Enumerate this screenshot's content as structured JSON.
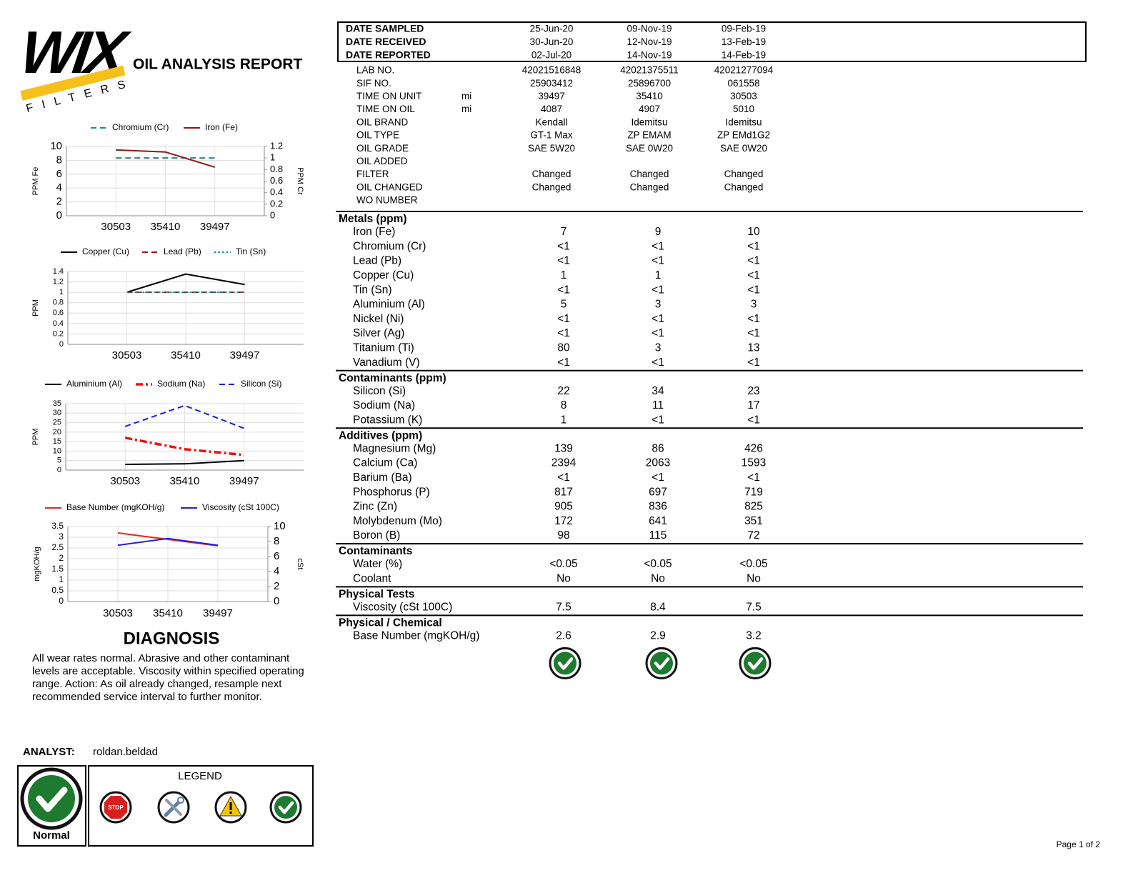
{
  "header": {
    "brand": "WIX",
    "brand_sub": "FILTERS",
    "title": "OIL ANALYSIS REPORT"
  },
  "chart_data": [
    {
      "type": "line",
      "categories": [
        "30503",
        "35410",
        "39497"
      ],
      "ylabel": "PPM Fe",
      "y2label": "PPM Cr",
      "ylim": [
        0,
        10
      ],
      "yticks": [
        0,
        2,
        4,
        6,
        8,
        10
      ],
      "y2lim": [
        0,
        1.2
      ],
      "y2ticks": [
        0,
        0.2,
        0.4,
        0.6,
        0.8,
        1,
        1.2
      ],
      "grid": true,
      "series": [
        {
          "name": "Chromium (Cr)",
          "color": "#1a8a8a",
          "dash": "dashed",
          "axis": "y2",
          "values": [
            1,
            1,
            1
          ]
        },
        {
          "name": "Iron (Fe)",
          "color": "#8b1a1a",
          "values": [
            9.5,
            9.2,
            7
          ]
        }
      ]
    },
    {
      "type": "line",
      "categories": [
        "30503",
        "35410",
        "39497"
      ],
      "ylabel": "PPM",
      "ylim": [
        0,
        1.4
      ],
      "yticks": [
        0,
        0.2,
        0.4,
        0.6,
        0.8,
        1,
        1.2,
        1.4
      ],
      "grid": true,
      "series": [
        {
          "name": "Copper (Cu)",
          "color": "#000000",
          "values": [
            1,
            1.35,
            1.15
          ]
        },
        {
          "name": "Lead (Pb)",
          "color": "#8b1a1a",
          "dash": "dashed",
          "values": [
            1,
            1,
            1
          ]
        },
        {
          "name": "Tin (Sn)",
          "color": "#1a8a8a",
          "dash": "dotted",
          "values": [
            1,
            1,
            1
          ]
        }
      ]
    },
    {
      "type": "line",
      "categories": [
        "30503",
        "35410",
        "39497"
      ],
      "ylabel": "PPM",
      "ylim": [
        0,
        35
      ],
      "yticks": [
        0,
        5,
        10,
        15,
        20,
        25,
        30,
        35
      ],
      "grid": true,
      "series": [
        {
          "name": "Aluminium (Al)",
          "color": "#000000",
          "values": [
            3,
            3.3,
            5
          ]
        },
        {
          "name": "Sodium (Na)",
          "color": "#ee1111",
          "dash": "dashdot",
          "values": [
            17,
            11,
            8
          ]
        },
        {
          "name": "Silicon (Si)",
          "color": "#1c1cdd",
          "dash": "dashed",
          "values": [
            23,
            34,
            22
          ]
        }
      ]
    },
    {
      "type": "line",
      "categories": [
        "30503",
        "35410",
        "39497"
      ],
      "ylabel": "mgKOH/g",
      "y2label": "cSt",
      "ylim": [
        0,
        3.5
      ],
      "yticks": [
        0,
        0.5,
        1,
        1.5,
        2,
        2.5,
        3,
        3.5
      ],
      "y2lim": [
        0,
        10
      ],
      "y2ticks": [
        0,
        2,
        4,
        6,
        8,
        10
      ],
      "grid": true,
      "series": [
        {
          "name": "Base Number (mgKOH/g)",
          "color": "#ee2222",
          "values": [
            3.2,
            2.9,
            2.6
          ]
        },
        {
          "name": "Viscosity (cSt 100C)",
          "color": "#2222dd",
          "axis": "y2",
          "values": [
            7.5,
            8.4,
            7.5
          ]
        }
      ]
    }
  ],
  "diagnosis": {
    "title": "DIAGNOSIS",
    "text": "All wear rates normal. Abrasive and other contaminant levels are acceptable. Viscosity within specified operating range.  Action: As oil already changed, resample next recommended service interval to further monitor."
  },
  "analyst": {
    "label": "ANALYST:",
    "name": "roldan.beldad"
  },
  "status": {
    "label": "Normal"
  },
  "legend": {
    "title": "LEGEND",
    "stop_sign": "STOP",
    "items": [
      "Severe",
      "Abnormal",
      "Caution",
      "Normal"
    ]
  },
  "samples": {
    "rows": [
      {
        "label": "DATE SAMPLED",
        "values": [
          "25-Jun-20",
          "09-Nov-19",
          "09-Feb-19"
        ]
      },
      {
        "label": "DATE RECEIVED",
        "values": [
          "30-Jun-20",
          "12-Nov-19",
          "13-Feb-19"
        ]
      },
      {
        "label": "DATE REPORTED",
        "values": [
          "02-Jul-20",
          "14-Nov-19",
          "14-Feb-19"
        ]
      }
    ]
  },
  "info": {
    "rows": [
      {
        "label": "LAB NO.",
        "values": [
          "42021516848",
          "42021375511",
          "42021277094"
        ]
      },
      {
        "label": "SIF NO.",
        "values": [
          "25903412",
          "25896700",
          "061558"
        ]
      },
      {
        "label": "TIME ON UNIT",
        "unit": "mi",
        "values": [
          39497,
          35410,
          30503
        ]
      },
      {
        "label": "TIME ON OIL",
        "unit": "mi",
        "values": [
          4087,
          4907,
          5010
        ]
      },
      {
        "label": "OIL BRAND",
        "values": [
          "Kendall",
          "Idemitsu",
          "Idemitsu"
        ]
      },
      {
        "label": "OIL TYPE",
        "values": [
          "GT-1 Max",
          "ZP EMAM",
          "ZP EMd1G2"
        ]
      },
      {
        "label": "OIL GRADE",
        "values": [
          "SAE 5W20",
          "SAE 0W20",
          "SAE 0W20"
        ]
      },
      {
        "label": "OIL ADDED"
      },
      {
        "label": "FILTER",
        "values": [
          "Changed",
          "Changed",
          "Changed"
        ]
      },
      {
        "label": "OIL CHANGED",
        "values": [
          "Changed",
          "Changed",
          "Changed"
        ]
      },
      {
        "label": "WO NUMBER"
      }
    ]
  },
  "sections": [
    {
      "title": "Metals (ppm)",
      "rows": [
        {
          "label": "Iron (Fe)",
          "values": [
            7,
            9,
            10
          ]
        },
        {
          "label": "Chromium (Cr)",
          "values": [
            "<1",
            "<1",
            "<1"
          ]
        },
        {
          "label": "Lead (Pb)",
          "values": [
            "<1",
            "<1",
            "<1"
          ]
        },
        {
          "label": "Copper (Cu)",
          "values": [
            1,
            1,
            "<1"
          ]
        },
        {
          "label": "Tin (Sn)",
          "values": [
            "<1",
            "<1",
            "<1"
          ]
        },
        {
          "label": "Aluminium (Al)",
          "values": [
            5,
            3,
            3
          ]
        },
        {
          "label": "Nickel (Ni)",
          "values": [
            "<1",
            "<1",
            "<1"
          ]
        },
        {
          "label": "Silver (Ag)",
          "values": [
            "<1",
            "<1",
            "<1"
          ]
        },
        {
          "label": "Titanium (Ti)",
          "values": [
            80,
            3,
            13
          ]
        },
        {
          "label": "Vanadium (V)",
          "values": [
            "<1",
            "<1",
            "<1"
          ]
        }
      ]
    },
    {
      "title": "Contaminants (ppm)",
      "rows": [
        {
          "label": "Silicon (Si)",
          "values": [
            22,
            34,
            23
          ]
        },
        {
          "label": "Sodium (Na)",
          "values": [
            8,
            11,
            17
          ]
        },
        {
          "label": "Potassium (K)",
          "values": [
            1,
            "<1",
            "<1"
          ]
        }
      ]
    },
    {
      "title": "Additives (ppm)",
      "rows": [
        {
          "label": "Magnesium (Mg)",
          "values": [
            139,
            86,
            426
          ]
        },
        {
          "label": "Calcium (Ca)",
          "values": [
            2394,
            2063,
            1593
          ]
        },
        {
          "label": "Barium (Ba)",
          "values": [
            "<1",
            "<1",
            "<1"
          ]
        },
        {
          "label": "Phosphorus (P)",
          "values": [
            817,
            697,
            719
          ]
        },
        {
          "label": "Zinc (Zn)",
          "values": [
            905,
            836,
            825
          ]
        },
        {
          "label": "Molybdenum (Mo)",
          "values": [
            172,
            641,
            351
          ]
        },
        {
          "label": "Boron (B)",
          "values": [
            98,
            115,
            72
          ]
        }
      ]
    },
    {
      "title": "Contaminants",
      "rows": [
        {
          "label": "Water (%)",
          "values": [
            "<0.05",
            "<0.05",
            "<0.05"
          ]
        },
        {
          "label": "Coolant",
          "values": [
            "No",
            "No",
            "No"
          ]
        }
      ]
    },
    {
      "title": "Physical Tests",
      "rows": [
        {
          "label": "Viscosity (cSt 100C)",
          "values": [
            7.5,
            8.4,
            7.5
          ]
        }
      ]
    },
    {
      "title": "Physical / Chemical",
      "rows": [
        {
          "label": "Base Number (mgKOH/g)",
          "values": [
            2.6,
            2.9,
            3.2
          ]
        }
      ]
    }
  ],
  "page": "Page 1 of 2"
}
